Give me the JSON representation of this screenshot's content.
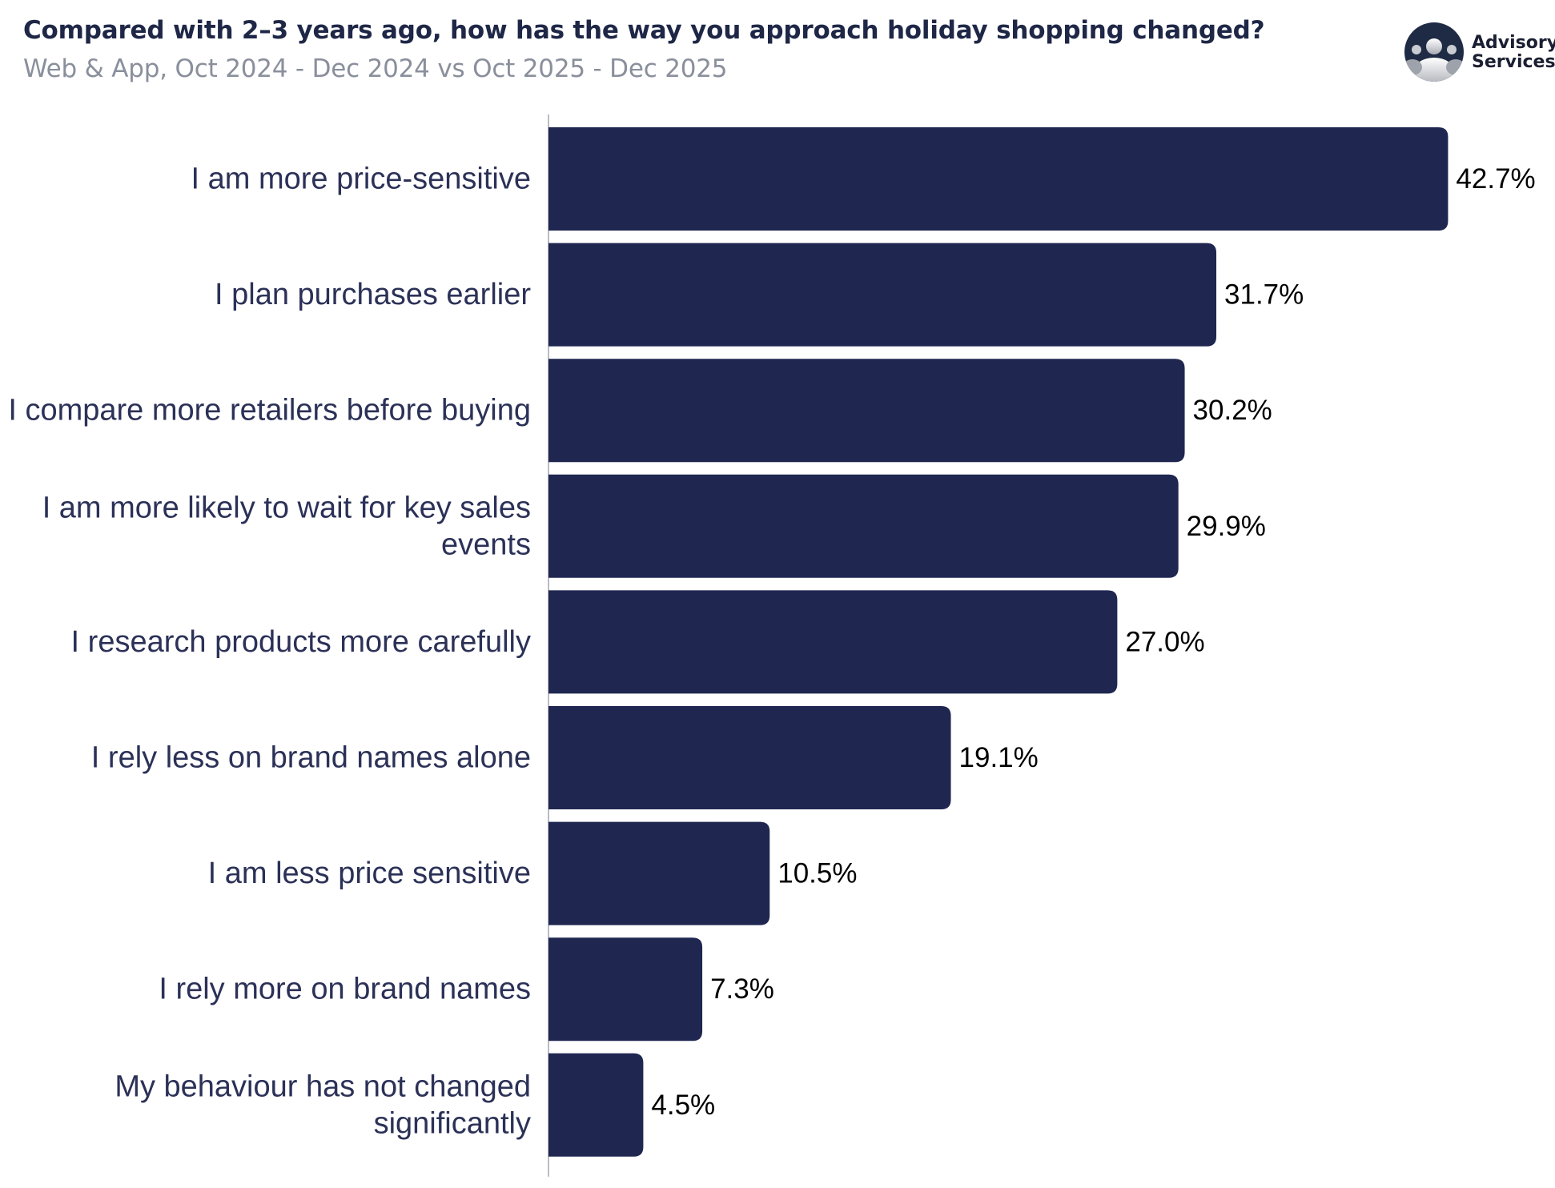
{
  "header": {
    "title": "Compared with 2–3 years ago, how has the way you approach holiday shopping changed?",
    "subtitle": "Web & App, Oct 2024 - Dec 2024 vs Oct 2025 - Dec 2025"
  },
  "logo": {
    "line1": "Advisory",
    "line2": "Services",
    "icon": "people-group-icon"
  },
  "colors": {
    "bar": "#1f2650",
    "axis": "#b8bcc6",
    "title": "#1f2747",
    "subtitle": "#8a8f9c"
  },
  "chart_data": {
    "type": "bar",
    "orientation": "horizontal",
    "title": "Compared with 2–3 years ago, how has the way you approach holiday shopping changed?",
    "subtitle": "Web & App, Oct 2024 - Dec 2024 vs Oct 2025 - Dec 2025",
    "xlabel": "",
    "ylabel": "",
    "categories": [
      [
        "I am more price-sensitive"
      ],
      [
        "I plan purchases earlier"
      ],
      [
        "I compare more retailers before buying"
      ],
      [
        "I am more likely to wait for key sales",
        "events"
      ],
      [
        "I research products more carefully"
      ],
      [
        "I rely less on brand names alone"
      ],
      [
        "I am less price sensitive"
      ],
      [
        "I rely more on brand names"
      ],
      [
        "My behaviour has not changed",
        "significantly"
      ]
    ],
    "values": [
      42.7,
      31.7,
      30.2,
      29.9,
      27.0,
      19.1,
      10.5,
      7.3,
      4.5
    ],
    "value_labels": [
      "42.7%",
      "31.7%",
      "30.2%",
      "29.9%",
      "27.0%",
      "19.1%",
      "10.5%",
      "7.3%",
      "4.5%"
    ],
    "grid": false,
    "legend": "none"
  }
}
